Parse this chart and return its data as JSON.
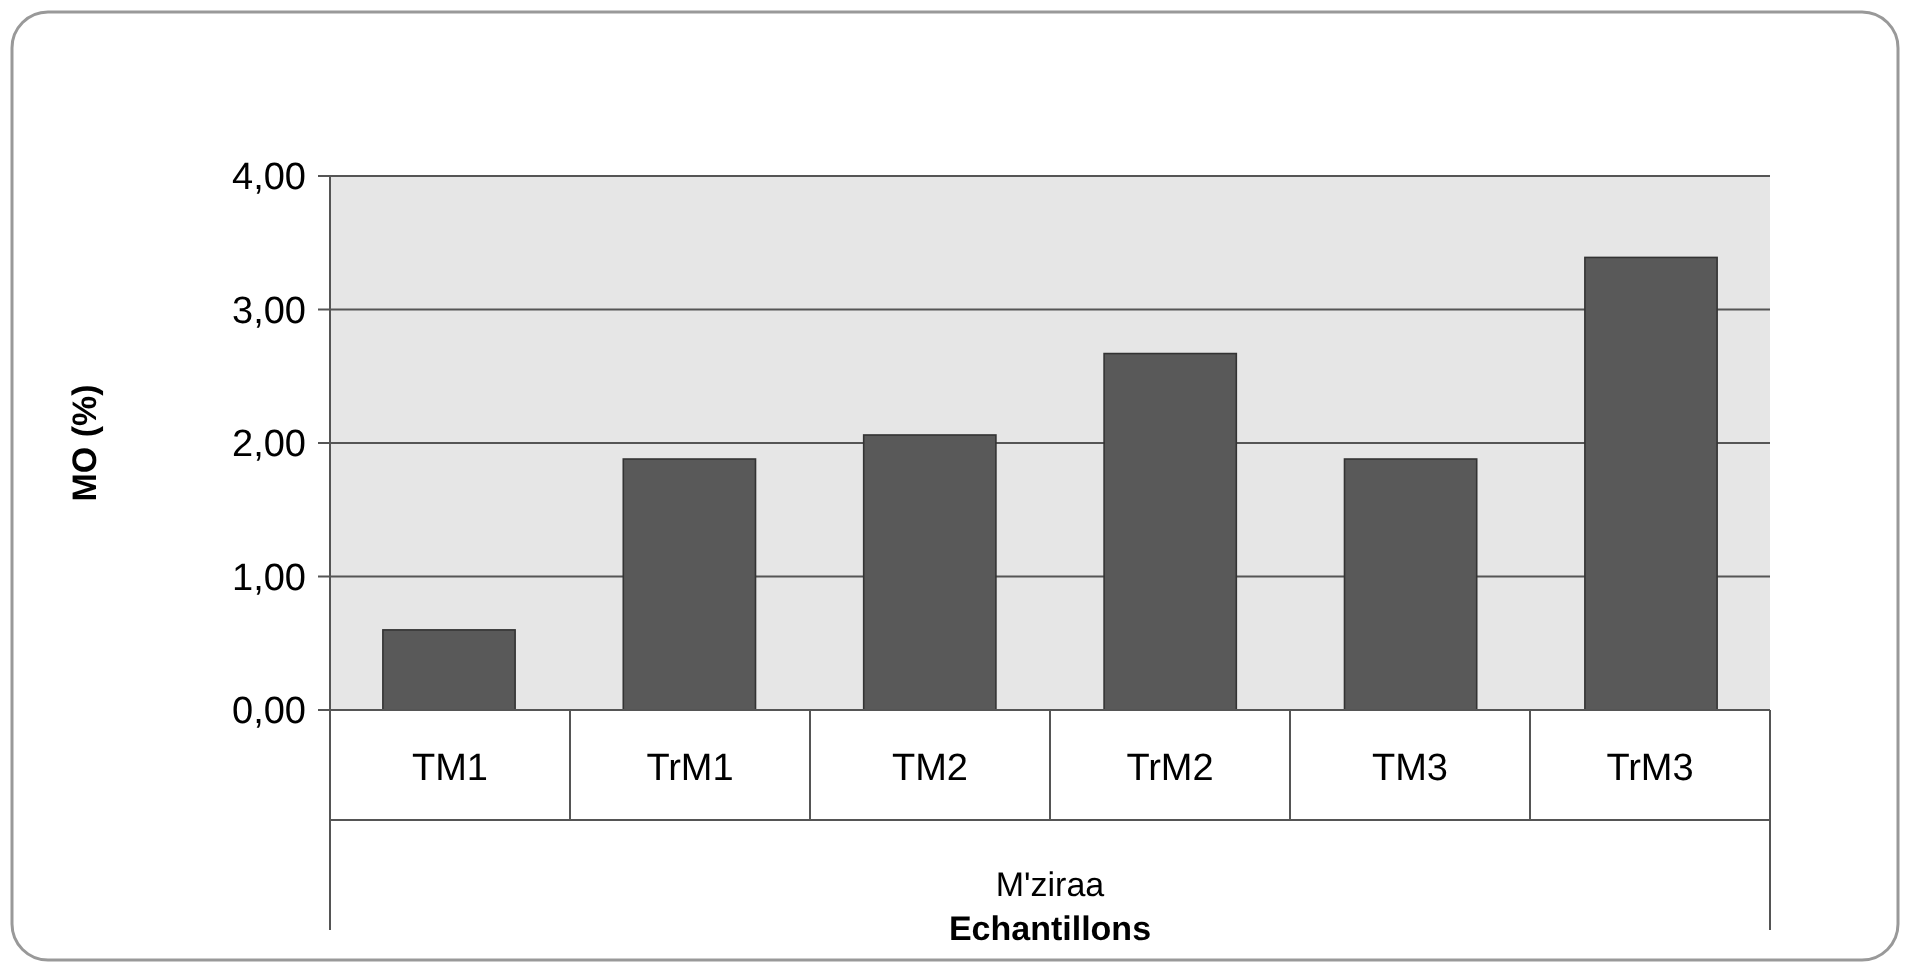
{
  "chart_data": {
    "type": "bar",
    "ylabel": "MO (%)",
    "xlabel": "Echantillons",
    "categories": [
      "TM1",
      "TrM1",
      "TM2",
      "TrM2",
      "TM3",
      "TrM3"
    ],
    "values": [
      0.6,
      1.88,
      2.06,
      2.67,
      1.88,
      3.39
    ],
    "color": "#595959",
    "ylim": [
      0,
      4
    ],
    "yticks": [
      {
        "value": 0,
        "label": "0,00"
      },
      {
        "value": 1,
        "label": "1,00"
      },
      {
        "value": 2,
        "label": "2,00"
      },
      {
        "value": 3,
        "label": "3,00"
      },
      {
        "value": 4,
        "label": "4,00"
      }
    ],
    "grid": "y",
    "annotations": [
      "M'ziraa"
    ]
  }
}
